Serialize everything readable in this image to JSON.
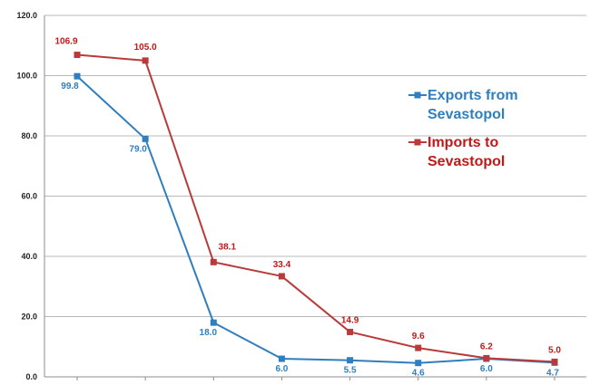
{
  "chart_data": {
    "type": "line",
    "title": "",
    "xlabel": "",
    "ylabel": "",
    "ylim": [
      0,
      120
    ],
    "yticks": [
      "0.0",
      "20.0",
      "40.0",
      "60.0",
      "80.0",
      "100.0",
      "120.0"
    ],
    "grid": true,
    "legend_position": "right",
    "categories": [
      "",
      "",
      "",
      "",
      "",
      "",
      "",
      ""
    ],
    "series": [
      {
        "name": "Exports from Sevastopol",
        "legend_lines": [
          "Exports from",
          "Sevastopol"
        ],
        "color": "#2f7ebf",
        "marker": "square",
        "values": [
          99.8,
          79.0,
          18.0,
          6.0,
          5.5,
          4.6,
          6.0,
          4.7
        ],
        "labels": [
          "99.8",
          "79.0",
          "18.0",
          "6.0",
          "5.5",
          "4.6",
          "6.0",
          "4.7"
        ]
      },
      {
        "name": "Imports to Sevastopol",
        "legend_lines": [
          "Imports to",
          "Sevastopol"
        ],
        "color": "#b93a3a",
        "label_color": "#c0191a",
        "marker": "square",
        "values": [
          106.9,
          105.0,
          38.1,
          33.4,
          14.9,
          9.6,
          6.2,
          5.0
        ],
        "labels": [
          "106.9",
          "105.0",
          "38.1",
          "33.4",
          "14.9",
          "9.6",
          "6.2",
          "5.0"
        ]
      }
    ]
  }
}
